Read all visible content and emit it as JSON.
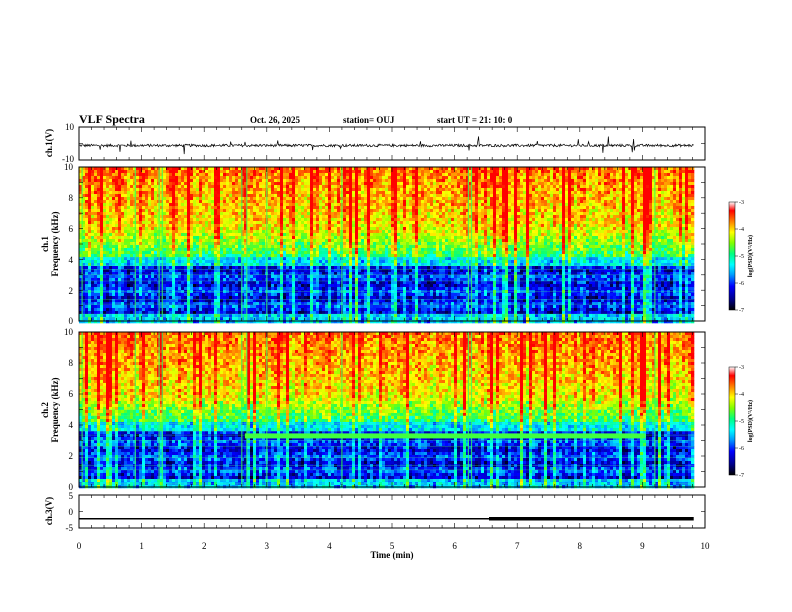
{
  "header": {
    "title": "VLF Spectra",
    "date": "Oct. 26, 2025",
    "station": "station= OUJ",
    "start": "start  UT  =   21: 10: 0"
  },
  "chart_data": [
    {
      "type": "line",
      "panel": "ch1-waveform",
      "ylabel": "ch.1(V)",
      "xlim": [
        0,
        10
      ],
      "ylim": [
        -10,
        10
      ],
      "yticks": [
        "10",
        "-10"
      ],
      "series": [
        {
          "color": "#000000",
          "baseline": -1.2,
          "noise_amplitude": 0.8,
          "x_end": 9.82
        }
      ]
    },
    {
      "type": "heatmap",
      "panel": "ch1-spectrogram",
      "ylabel": "ch.1\nFrequency  (kHz)",
      "ylabel_lines": [
        "ch.1",
        "Frequency  (kHz)"
      ],
      "xlim": [
        0,
        10
      ],
      "ylim": [
        0,
        10
      ],
      "yticks": [
        "0",
        "2",
        "4",
        "6",
        "8",
        "10"
      ],
      "x_end": 9.82,
      "colorbar": {
        "label": "log(PSD)(V²/Hz)",
        "range": [
          -7,
          -3
        ],
        "ticks": [
          "-3",
          "-4",
          "-5",
          "-6",
          "-7"
        ]
      },
      "has_3_3kHz_band": false
    },
    {
      "type": "heatmap",
      "panel": "ch2-spectrogram",
      "ylabel_lines": [
        "ch.2",
        "Frequency  (kHz)"
      ],
      "xlim": [
        0,
        10
      ],
      "ylim": [
        0,
        10
      ],
      "yticks": [
        "0",
        "2",
        "4",
        "6",
        "8",
        "10"
      ],
      "x_end": 9.82,
      "colorbar": {
        "label": "log(PSD)(V²/Hz)",
        "range": [
          -7,
          -3
        ],
        "ticks": [
          "-3",
          "-4",
          "-5",
          "-6",
          "-7"
        ]
      },
      "has_3_3kHz_band": true,
      "band": {
        "freq_khz": 3.3,
        "x_start": 2.65,
        "x_end": 9.05
      }
    },
    {
      "type": "line",
      "panel": "ch3-waveform",
      "ylabel": "ch.3(V)",
      "xlabel": "Time  (min)",
      "xlim": [
        0,
        10
      ],
      "ylim": [
        -5,
        5
      ],
      "yticks": [
        "5",
        "0",
        "-5"
      ],
      "xticks": [
        "0",
        "1",
        "2",
        "3",
        "4",
        "5",
        "6",
        "7",
        "8",
        "9",
        "10"
      ],
      "series": [
        {
          "color": "#000000",
          "x": [
            0,
            6.55
          ],
          "y": [
            -2.2,
            -2.2
          ],
          "width": "thin"
        },
        {
          "color": "#000000",
          "x": [
            6.55,
            9.82
          ],
          "y": [
            -2.2,
            -2.2
          ],
          "width": "thick"
        }
      ]
    }
  ],
  "colors": {
    "colormap": [
      "#000000",
      "#00008b",
      "#0000ff",
      "#00a0ff",
      "#00ffff",
      "#00ff80",
      "#80ff00",
      "#ffff00",
      "#ff8000",
      "#ff0000",
      "#ffffff"
    ]
  }
}
